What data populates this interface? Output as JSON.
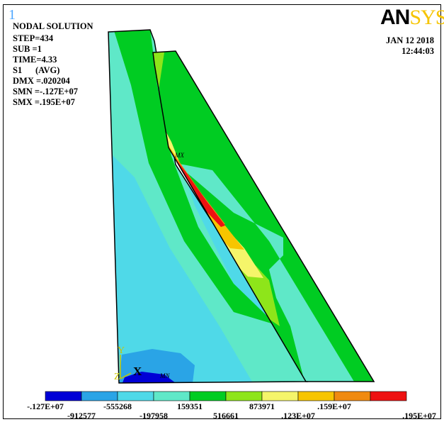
{
  "window_number": "1",
  "title": "NODAL SOLUTION",
  "info_lines": [
    "STEP=434",
    "SUB =1",
    "TIME=4.33",
    "S1      (AVG)",
    "DMX =.020204",
    "SMN =-.127E+07",
    "SMX =.195E+07"
  ],
  "logo": {
    "an": "AN",
    "sys": "SYS"
  },
  "date": "JAN 12 2018",
  "time": "12:44:03",
  "markers": {
    "max": "MX",
    "min": "MN"
  },
  "triad": {
    "y": "Y",
    "z": "Z",
    "x": "X"
  },
  "legend": {
    "colors": [
      "#0000d6",
      "#2aa4e6",
      "#4fd9e8",
      "#5fe8c8",
      "#00cc22",
      "#8ee51a",
      "#f5f56a",
      "#f7c500",
      "#f08a10",
      "#ee1111"
    ],
    "labels_top": [
      "-.127E+07",
      "-555268",
      "159351",
      "873971",
      ".159E+07"
    ],
    "labels_bottom": [
      "-912577",
      "-197958",
      "516661",
      ".123E+07",
      ".195E+07"
    ]
  }
}
